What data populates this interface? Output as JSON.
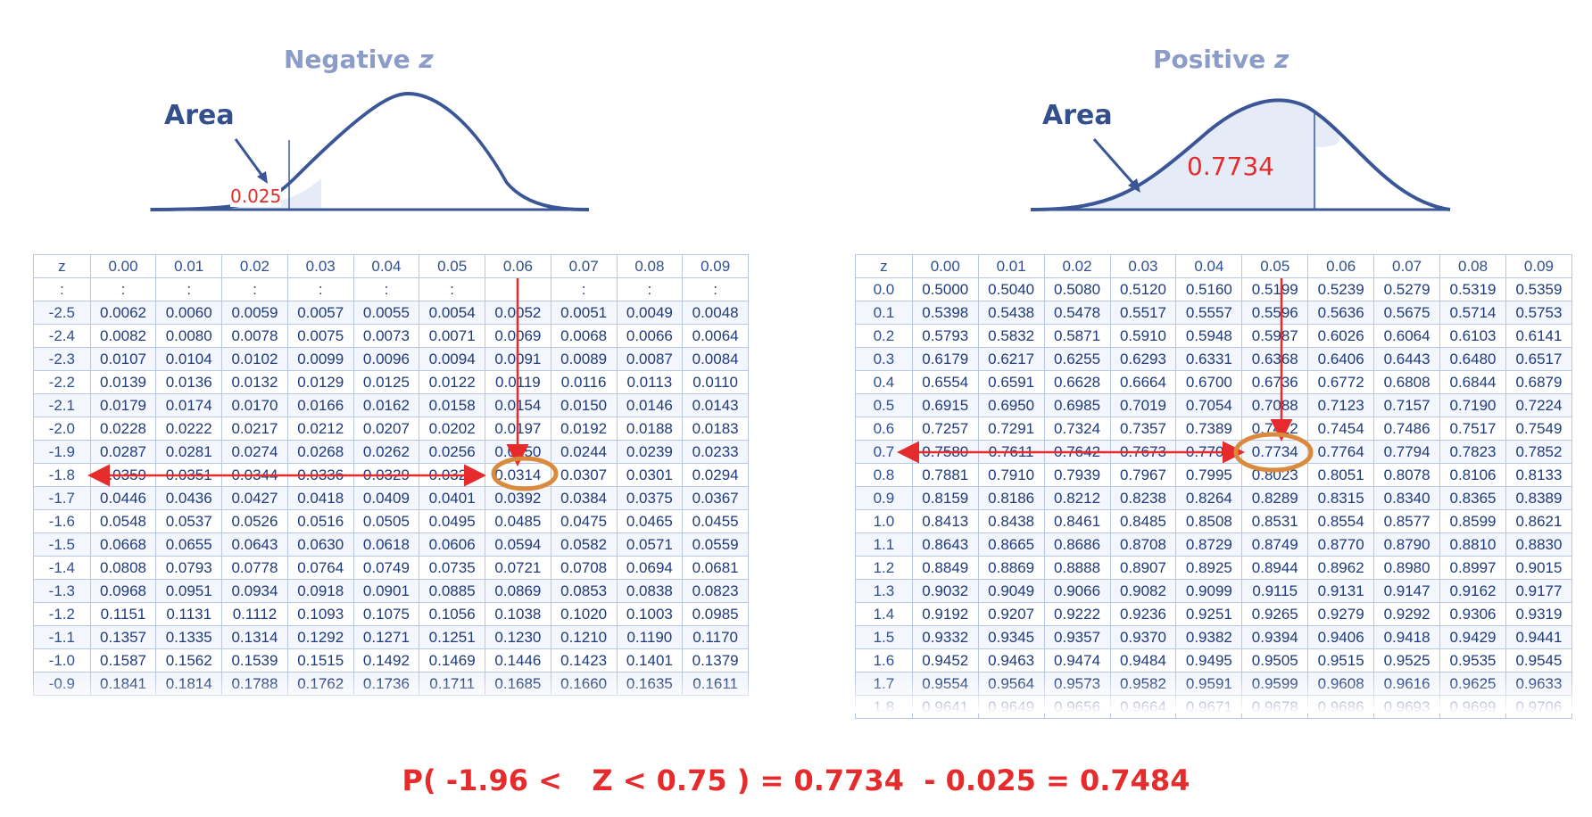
{
  "left": {
    "title_prefix": "Negative ",
    "title_var": "z",
    "area_label": "Area",
    "area_value": "0.025",
    "header": [
      "z",
      "0.00",
      "0.01",
      "0.02",
      "0.03",
      "0.04",
      "0.05",
      "0.06",
      "0.07",
      "0.08",
      "0.09"
    ],
    "rows": [
      [
        ":",
        ":",
        ":",
        ":",
        ":",
        ":",
        ":",
        ":",
        ":",
        ":",
        ":"
      ],
      [
        "-2.5",
        "0.0062",
        "0.0060",
        "0.0059",
        "0.0057",
        "0.0055",
        "0.0054",
        "0.0052",
        "0.0051",
        "0.0049",
        "0.0048"
      ],
      [
        "-2.4",
        "0.0082",
        "0.0080",
        "0.0078",
        "0.0075",
        "0.0073",
        "0.0071",
        "0.0069",
        "0.0068",
        "0.0066",
        "0.0064"
      ],
      [
        "-2.3",
        "0.0107",
        "0.0104",
        "0.0102",
        "0.0099",
        "0.0096",
        "0.0094",
        "0.0091",
        "0.0089",
        "0.0087",
        "0.0084"
      ],
      [
        "-2.2",
        "0.0139",
        "0.0136",
        "0.0132",
        "0.0129",
        "0.0125",
        "0.0122",
        "0.0119",
        "0.0116",
        "0.0113",
        "0.0110"
      ],
      [
        "-2.1",
        "0.0179",
        "0.0174",
        "0.0170",
        "0.0166",
        "0.0162",
        "0.0158",
        "0.0154",
        "0.0150",
        "0.0146",
        "0.0143"
      ],
      [
        "-2.0",
        "0.0228",
        "0.0222",
        "0.0217",
        "0.0212",
        "0.0207",
        "0.0202",
        "0.0197",
        "0.0192",
        "0.0188",
        "0.0183"
      ],
      [
        "-1.9",
        "0.0287",
        "0.0281",
        "0.0274",
        "0.0268",
        "0.0262",
        "0.0256",
        "0.0250",
        "0.0244",
        "0.0239",
        "0.0233"
      ],
      [
        "-1.8",
        "0.0359",
        "0.0351",
        "0.0344",
        "0.0336",
        "0.0329",
        "0.0322",
        "0.0314",
        "0.0307",
        "0.0301",
        "0.0294"
      ],
      [
        "-1.7",
        "0.0446",
        "0.0436",
        "0.0427",
        "0.0418",
        "0.0409",
        "0.0401",
        "0.0392",
        "0.0384",
        "0.0375",
        "0.0367"
      ],
      [
        "-1.6",
        "0.0548",
        "0.0537",
        "0.0526",
        "0.0516",
        "0.0505",
        "0.0495",
        "0.0485",
        "0.0475",
        "0.0465",
        "0.0455"
      ],
      [
        "-1.5",
        "0.0668",
        "0.0655",
        "0.0643",
        "0.0630",
        "0.0618",
        "0.0606",
        "0.0594",
        "0.0582",
        "0.0571",
        "0.0559"
      ],
      [
        "-1.4",
        "0.0808",
        "0.0793",
        "0.0778",
        "0.0764",
        "0.0749",
        "0.0735",
        "0.0721",
        "0.0708",
        "0.0694",
        "0.0681"
      ],
      [
        "-1.3",
        "0.0968",
        "0.0951",
        "0.0934",
        "0.0918",
        "0.0901",
        "0.0885",
        "0.0869",
        "0.0853",
        "0.0838",
        "0.0823"
      ],
      [
        "-1.2",
        "0.1151",
        "0.1131",
        "0.1112",
        "0.1093",
        "0.1075",
        "0.1056",
        "0.1038",
        "0.1020",
        "0.1003",
        "0.0985"
      ],
      [
        "-1.1",
        "0.1357",
        "0.1335",
        "0.1314",
        "0.1292",
        "0.1271",
        "0.1251",
        "0.1230",
        "0.1210",
        "0.1190",
        "0.1170"
      ],
      [
        "-1.0",
        "0.1587",
        "0.1562",
        "0.1539",
        "0.1515",
        "0.1492",
        "0.1469",
        "0.1446",
        "0.1423",
        "0.1401",
        "0.1379"
      ],
      [
        "-0.9",
        "0.1841",
        "0.1814",
        "0.1788",
        "0.1762",
        "0.1736",
        "0.1711",
        "0.1685",
        "0.1660",
        "0.1635",
        "0.1611"
      ]
    ]
  },
  "right": {
    "title_prefix": "Positive ",
    "title_var": "z",
    "area_label": "Area",
    "area_value": "0.7734",
    "header": [
      "z",
      "0.00",
      "0.01",
      "0.02",
      "0.03",
      "0.04",
      "0.05",
      "0.06",
      "0.07",
      "0.08",
      "0.09"
    ],
    "rows": [
      [
        "0.0",
        "0.5000",
        "0.5040",
        "0.5080",
        "0.5120",
        "0.5160",
        "0.5199",
        "0.5239",
        "0.5279",
        "0.5319",
        "0.5359"
      ],
      [
        "0.1",
        "0.5398",
        "0.5438",
        "0.5478",
        "0.5517",
        "0.5557",
        "0.5596",
        "0.5636",
        "0.5675",
        "0.5714",
        "0.5753"
      ],
      [
        "0.2",
        "0.5793",
        "0.5832",
        "0.5871",
        "0.5910",
        "0.5948",
        "0.5987",
        "0.6026",
        "0.6064",
        "0.6103",
        "0.6141"
      ],
      [
        "0.3",
        "0.6179",
        "0.6217",
        "0.6255",
        "0.6293",
        "0.6331",
        "0.6368",
        "0.6406",
        "0.6443",
        "0.6480",
        "0.6517"
      ],
      [
        "0.4",
        "0.6554",
        "0.6591",
        "0.6628",
        "0.6664",
        "0.6700",
        "0.6736",
        "0.6772",
        "0.6808",
        "0.6844",
        "0.6879"
      ],
      [
        "0.5",
        "0.6915",
        "0.6950",
        "0.6985",
        "0.7019",
        "0.7054",
        "0.7088",
        "0.7123",
        "0.7157",
        "0.7190",
        "0.7224"
      ],
      [
        "0.6",
        "0.7257",
        "0.7291",
        "0.7324",
        "0.7357",
        "0.7389",
        "0.7422",
        "0.7454",
        "0.7486",
        "0.7517",
        "0.7549"
      ],
      [
        "0.7",
        "0.7580",
        "0.7611",
        "0.7642",
        "0.7673",
        "0.7704",
        "0.7734",
        "0.7764",
        "0.7794",
        "0.7823",
        "0.7852"
      ],
      [
        "0.8",
        "0.7881",
        "0.7910",
        "0.7939",
        "0.7967",
        "0.7995",
        "0.8023",
        "0.8051",
        "0.8078",
        "0.8106",
        "0.8133"
      ],
      [
        "0.9",
        "0.8159",
        "0.8186",
        "0.8212",
        "0.8238",
        "0.8264",
        "0.8289",
        "0.8315",
        "0.8340",
        "0.8365",
        "0.8389"
      ],
      [
        "1.0",
        "0.8413",
        "0.8438",
        "0.8461",
        "0.8485",
        "0.8508",
        "0.8531",
        "0.8554",
        "0.8577",
        "0.8599",
        "0.8621"
      ],
      [
        "1.1",
        "0.8643",
        "0.8665",
        "0.8686",
        "0.8708",
        "0.8729",
        "0.8749",
        "0.8770",
        "0.8790",
        "0.8810",
        "0.8830"
      ],
      [
        "1.2",
        "0.8849",
        "0.8869",
        "0.8888",
        "0.8907",
        "0.8925",
        "0.8944",
        "0.8962",
        "0.8980",
        "0.8997",
        "0.9015"
      ],
      [
        "1.3",
        "0.9032",
        "0.9049",
        "0.9066",
        "0.9082",
        "0.9099",
        "0.9115",
        "0.9131",
        "0.9147",
        "0.9162",
        "0.9177"
      ],
      [
        "1.4",
        "0.9192",
        "0.9207",
        "0.9222",
        "0.9236",
        "0.9251",
        "0.9265",
        "0.9279",
        "0.9292",
        "0.9306",
        "0.9319"
      ],
      [
        "1.5",
        "0.9332",
        "0.9345",
        "0.9357",
        "0.9370",
        "0.9382",
        "0.9394",
        "0.9406",
        "0.9418",
        "0.9429",
        "0.9441"
      ],
      [
        "1.6",
        "0.9452",
        "0.9463",
        "0.9474",
        "0.9484",
        "0.9495",
        "0.9505",
        "0.9515",
        "0.9525",
        "0.9535",
        "0.9545"
      ],
      [
        "1.7",
        "0.9554",
        "0.9564",
        "0.9573",
        "0.9582",
        "0.9591",
        "0.9599",
        "0.9608",
        "0.9616",
        "0.9625",
        "0.9633"
      ],
      [
        "1.8",
        "0.9641",
        "0.9649",
        "0.9656",
        "0.9664",
        "0.9671",
        "0.9678",
        "0.9686",
        "0.9693",
        "0.9699",
        "0.9706"
      ]
    ]
  },
  "formula": "P( -1.96 <   Z < 0.75 ) = 0.7734  - 0.025 = 0.7484",
  "colors": {
    "curve": "#3a5697",
    "shade": "#e5ecf7",
    "highlight": "#d98a3c",
    "arrow": "#e52b2b"
  }
}
